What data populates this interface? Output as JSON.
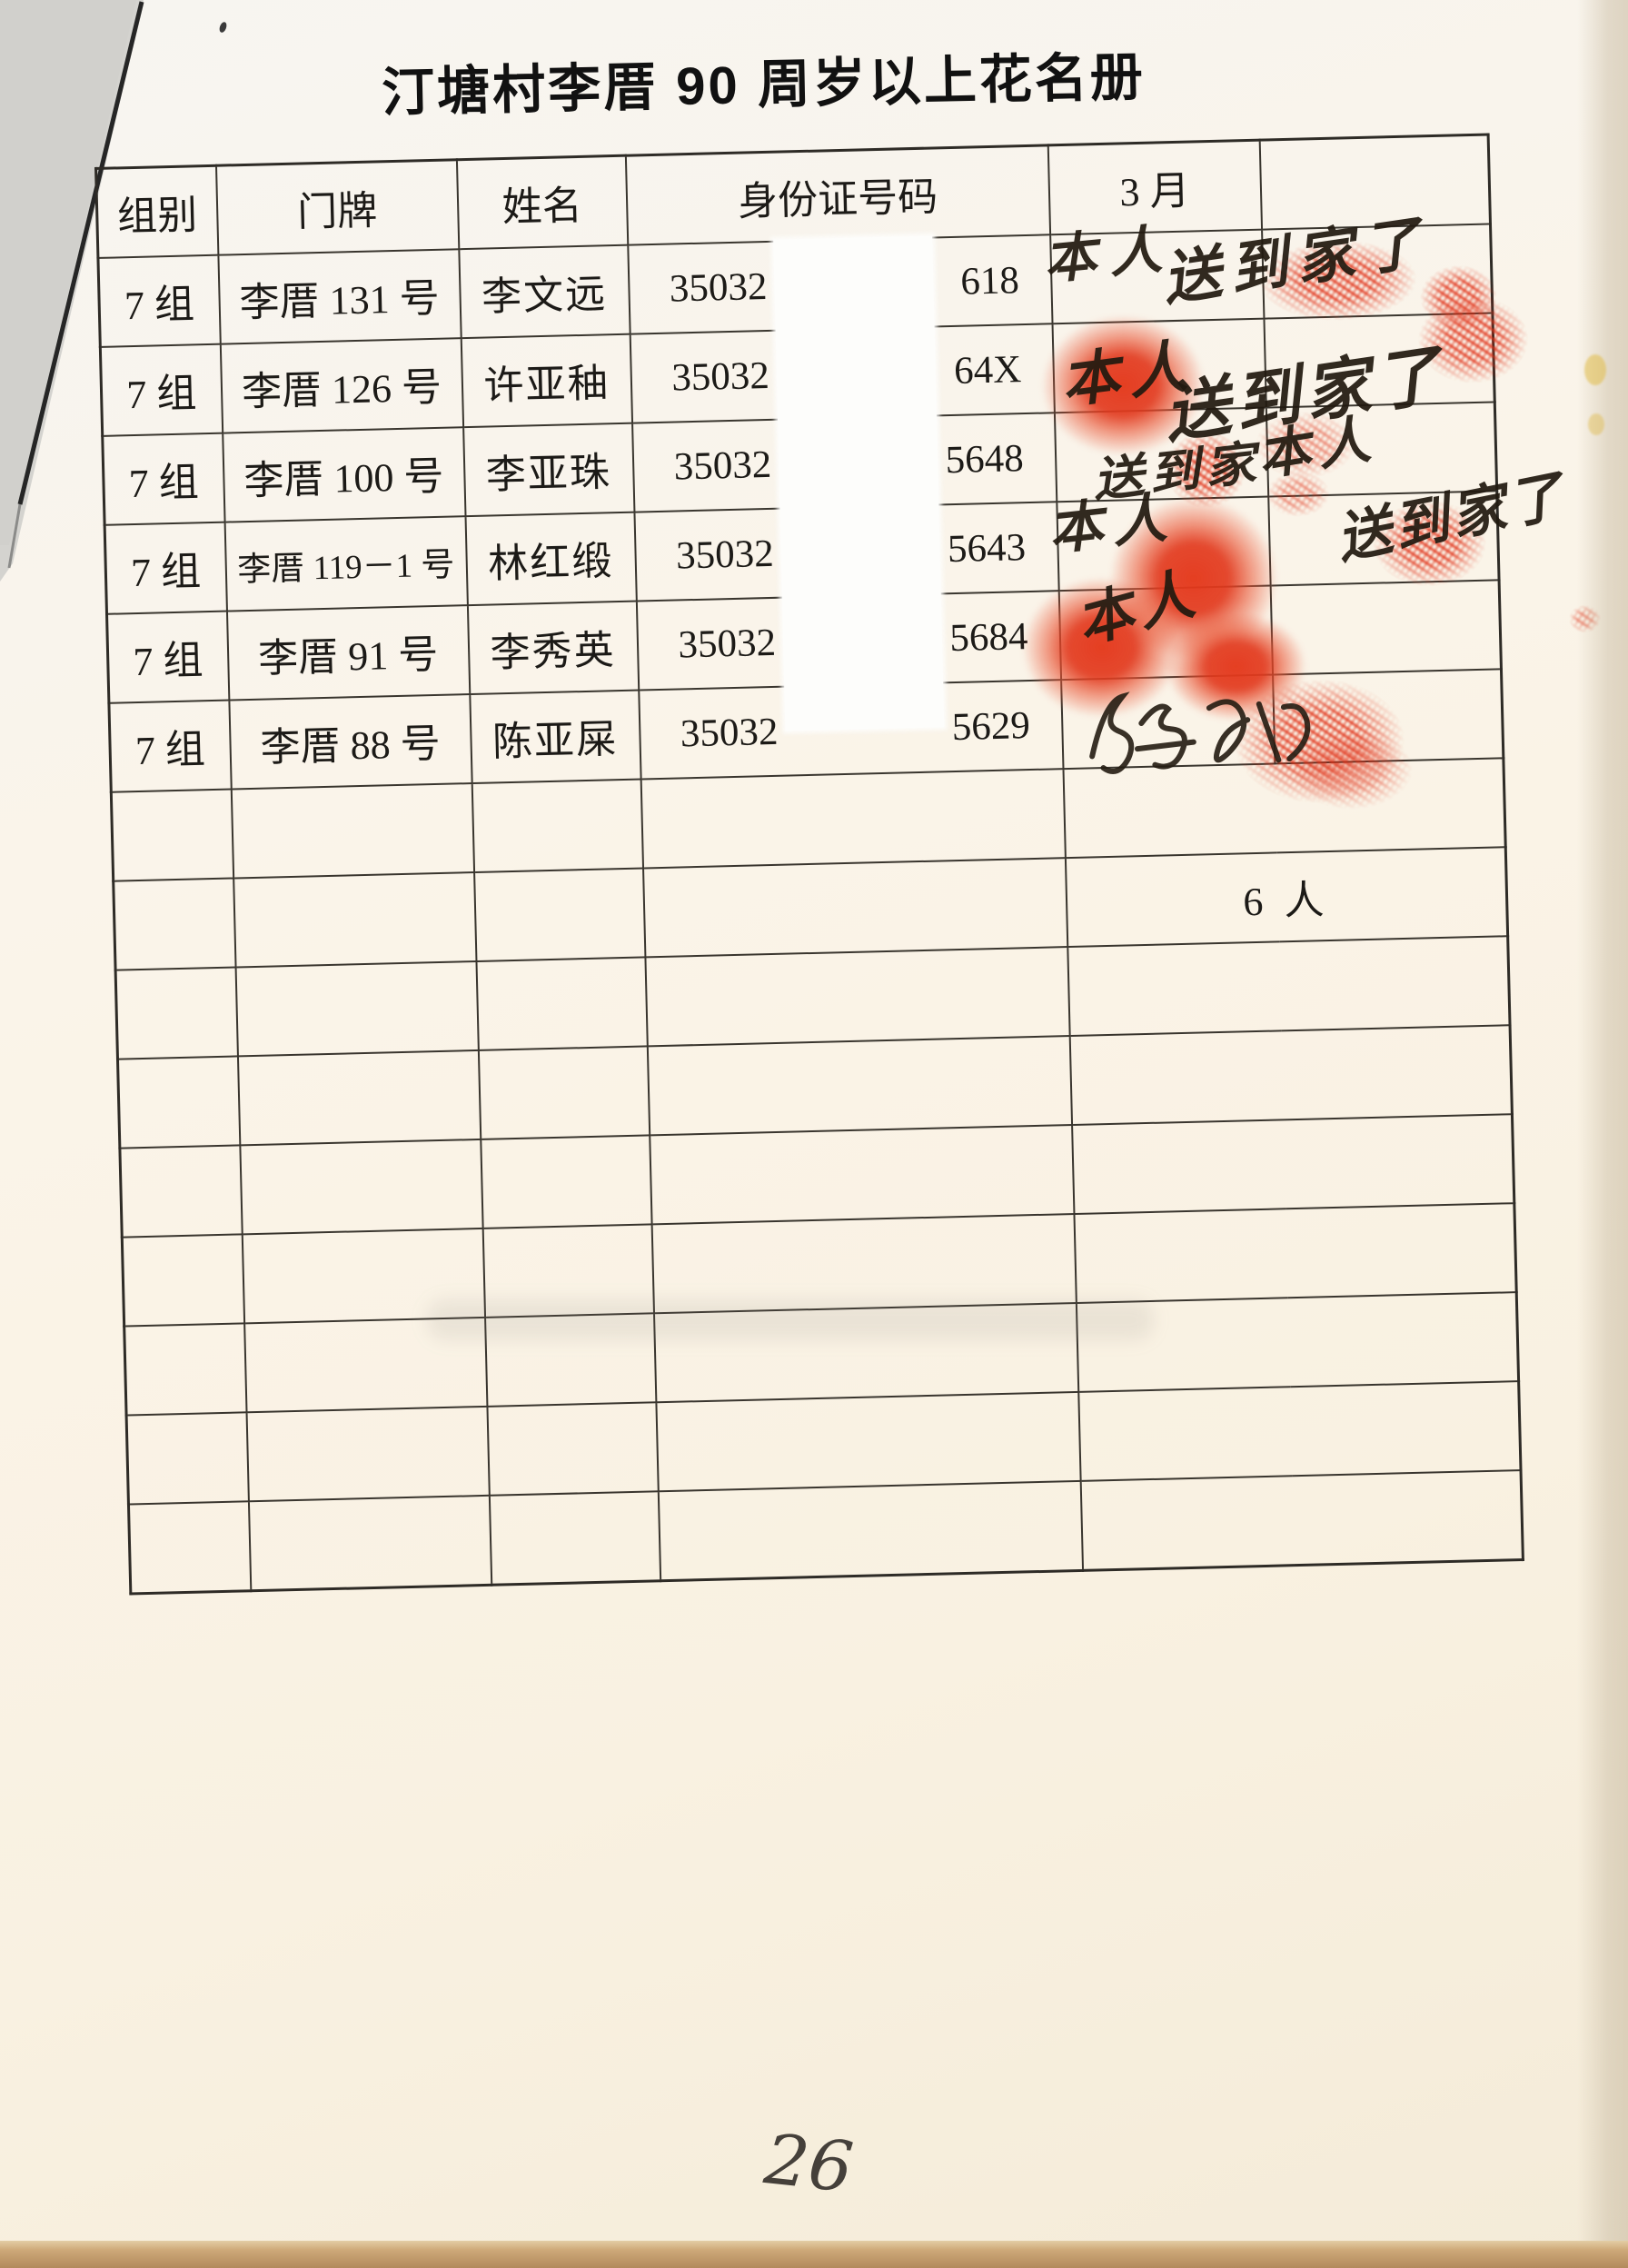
{
  "page": {
    "title": "汀塘村李厝 90 周岁以上花名册",
    "page_number": "26",
    "summary_count": "6 人"
  },
  "table": {
    "headers": [
      "组别",
      "门牌",
      "姓名",
      "身份证号码",
      "3 月",
      ""
    ],
    "rows": [
      {
        "group": "7 组",
        "door": "李厝 131 号",
        "name": "李文远",
        "id_prefix": "35032",
        "id_suffix": "618"
      },
      {
        "group": "7 组",
        "door": "李厝 126 号",
        "name": "许亚秞",
        "id_prefix": "35032",
        "id_suffix": "64X"
      },
      {
        "group": "7 组",
        "door": "李厝 100 号",
        "name": "李亚珠",
        "id_prefix": "35032",
        "id_suffix": "5648"
      },
      {
        "group": "7 组",
        "door": "李厝 119－1 号",
        "name": "林红缎",
        "id_prefix": "35032",
        "id_suffix": "5643"
      },
      {
        "group": "7 组",
        "door": "李厝 91 号",
        "name": "李秀英",
        "id_prefix": "35032",
        "id_suffix": "5684"
      },
      {
        "group": "7 组",
        "door": "李厝 88 号",
        "name": "陈亚屎",
        "id_prefix": "35032",
        "id_suffix": "5629"
      }
    ],
    "empty_row_count": 9
  },
  "annotations": {
    "handwriting": [
      {
        "row": 1,
        "text": "本人"
      },
      {
        "row": 1,
        "text": "送到家了"
      },
      {
        "row": 2,
        "text": "本人"
      },
      {
        "row": 2,
        "text": "送到家了"
      },
      {
        "row": 3,
        "text": "送到家"
      },
      {
        "row": 3,
        "text": "本人"
      },
      {
        "row": 4,
        "text": "本人"
      },
      {
        "row": 4,
        "text": "送到家了"
      },
      {
        "row": 5,
        "text": "本人"
      }
    ]
  },
  "colors": {
    "stamp_red": "#e03a1d",
    "ink_black": "#221a10",
    "paper_cream": "#faf3e6",
    "table_line": "#39352e"
  }
}
